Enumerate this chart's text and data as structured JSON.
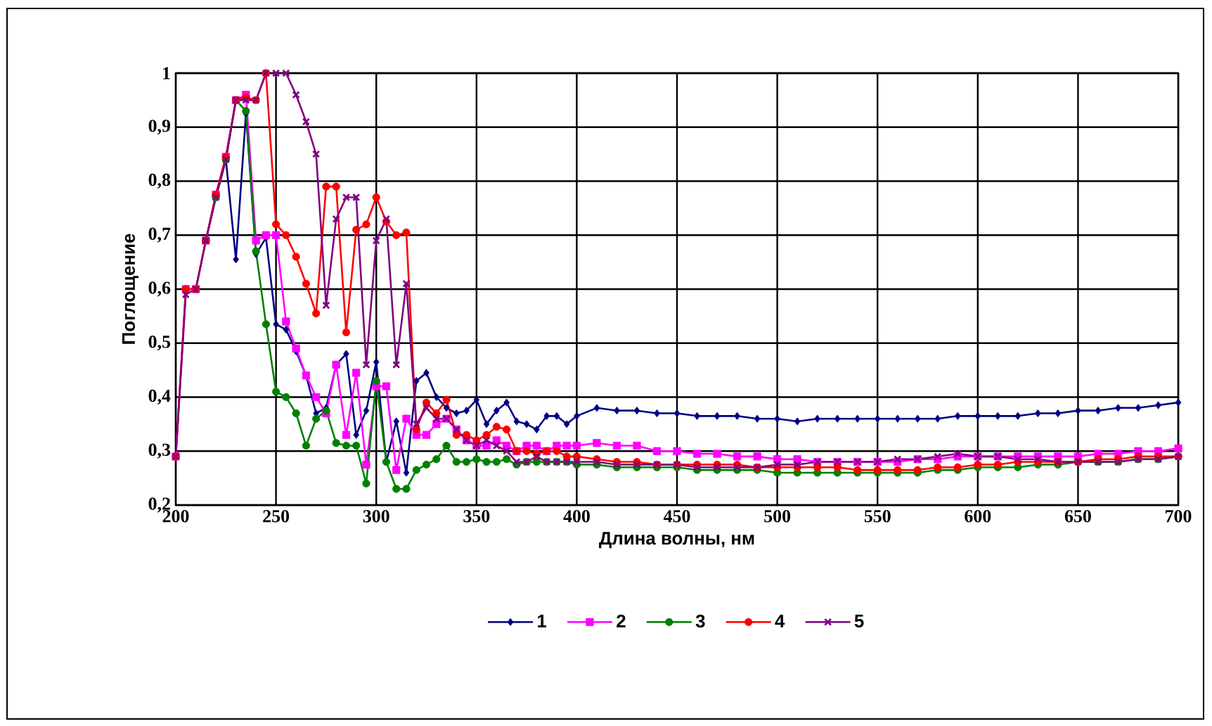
{
  "chart_data": {
    "type": "line",
    "xlabel": "Длина волны, нм",
    "ylabel": "Поглощение",
    "x": [
      200,
      205,
      210,
      215,
      220,
      225,
      230,
      235,
      240,
      245,
      250,
      255,
      260,
      265,
      270,
      275,
      280,
      285,
      290,
      295,
      300,
      305,
      310,
      315,
      320,
      325,
      330,
      335,
      340,
      345,
      350,
      355,
      360,
      365,
      370,
      375,
      380,
      385,
      390,
      395,
      400,
      410,
      420,
      430,
      440,
      450,
      460,
      470,
      480,
      490,
      500,
      510,
      520,
      530,
      540,
      550,
      560,
      570,
      580,
      590,
      600,
      610,
      620,
      630,
      640,
      650,
      660,
      670,
      680,
      690,
      700
    ],
    "series": [
      {
        "name": "1",
        "color": "#000080",
        "marker": "diamond",
        "values": [
          null,
          null,
          null,
          null,
          0.77,
          0.84,
          0.655,
          0.925,
          0.665,
          0.695,
          0.535,
          0.525,
          0.485,
          0.44,
          0.37,
          0.38,
          0.46,
          0.48,
          0.33,
          0.375,
          0.465,
          0.28,
          0.355,
          0.26,
          0.43,
          0.445,
          0.4,
          0.38,
          0.37,
          0.375,
          0.395,
          0.35,
          0.375,
          0.39,
          0.355,
          0.35,
          0.34,
          0.365,
          0.365,
          0.35,
          0.365,
          0.38,
          0.375,
          0.375,
          0.37,
          0.37,
          0.365,
          0.365,
          0.365,
          0.36,
          0.36,
          0.355,
          0.36,
          0.36,
          0.36,
          0.36,
          0.36,
          0.36,
          0.36,
          0.365,
          0.365,
          0.365,
          0.365,
          0.37,
          0.37,
          0.375,
          0.375,
          0.38,
          0.38,
          0.385,
          0.39
        ]
      },
      {
        "name": "2",
        "color": "#ff00ff",
        "marker": "square",
        "values": [
          0.29,
          0.6,
          0.6,
          0.69,
          0.775,
          0.845,
          0.95,
          0.96,
          0.69,
          0.7,
          0.7,
          0.54,
          0.49,
          0.44,
          0.4,
          0.37,
          0.46,
          0.33,
          0.445,
          0.275,
          0.42,
          0.42,
          0.265,
          0.36,
          0.33,
          0.33,
          0.35,
          0.36,
          0.34,
          0.32,
          0.31,
          0.31,
          0.32,
          0.31,
          0.3,
          0.31,
          0.31,
          0.3,
          0.31,
          0.31,
          0.31,
          0.315,
          0.31,
          0.31,
          0.3,
          0.3,
          0.295,
          0.295,
          0.29,
          0.29,
          0.285,
          0.285,
          0.28,
          0.28,
          0.28,
          0.28,
          0.28,
          0.285,
          0.285,
          0.29,
          0.29,
          0.29,
          0.29,
          0.29,
          0.29,
          0.29,
          0.295,
          0.295,
          0.3,
          0.3,
          0.305
        ]
      },
      {
        "name": "3",
        "color": "#008000",
        "marker": "circle",
        "values": [
          null,
          null,
          null,
          0.69,
          0.77,
          0.84,
          0.95,
          0.93,
          0.67,
          0.535,
          0.41,
          0.4,
          0.37,
          0.31,
          0.36,
          0.375,
          0.315,
          0.31,
          0.31,
          0.24,
          0.43,
          0.28,
          0.23,
          0.23,
          0.265,
          0.275,
          0.285,
          0.31,
          0.28,
          0.28,
          0.285,
          0.28,
          0.28,
          0.285,
          0.275,
          0.28,
          0.28,
          0.28,
          0.28,
          0.28,
          0.275,
          0.275,
          0.27,
          0.27,
          0.27,
          0.27,
          0.265,
          0.265,
          0.265,
          0.265,
          0.26,
          0.26,
          0.26,
          0.26,
          0.26,
          0.26,
          0.26,
          0.26,
          0.265,
          0.265,
          0.27,
          0.27,
          0.27,
          0.275,
          0.275,
          0.28,
          0.28,
          0.28,
          0.285,
          0.285,
          0.29
        ]
      },
      {
        "name": "4",
        "color": "#ff0000",
        "marker": "circle",
        "values": [
          0.29,
          0.6,
          0.6,
          0.69,
          0.775,
          0.845,
          0.95,
          0.955,
          0.95,
          1.0,
          0.72,
          0.7,
          0.66,
          0.61,
          0.555,
          0.79,
          0.79,
          0.52,
          0.71,
          0.72,
          0.77,
          0.725,
          0.7,
          0.705,
          0.34,
          0.39,
          0.37,
          0.395,
          0.33,
          0.33,
          0.32,
          0.33,
          0.345,
          0.34,
          0.3,
          0.3,
          0.295,
          0.3,
          0.3,
          0.29,
          0.29,
          0.285,
          0.28,
          0.28,
          0.275,
          0.275,
          0.275,
          0.275,
          0.275,
          0.27,
          0.27,
          0.27,
          0.27,
          0.27,
          0.265,
          0.265,
          0.265,
          0.265,
          0.27,
          0.27,
          0.275,
          0.275,
          0.28,
          0.28,
          0.28,
          0.28,
          0.285,
          0.285,
          0.29,
          0.29,
          0.29
        ]
      },
      {
        "name": "5",
        "color": "#800080",
        "marker": "cross",
        "values": [
          0.29,
          0.59,
          0.6,
          0.69,
          0.77,
          0.84,
          0.95,
          0.95,
          0.95,
          1.0,
          1.0,
          1.0,
          0.96,
          0.91,
          0.85,
          0.57,
          0.73,
          0.77,
          0.77,
          0.46,
          0.69,
          0.73,
          0.46,
          0.61,
          0.35,
          0.38,
          0.36,
          0.36,
          0.34,
          0.32,
          0.31,
          0.32,
          0.31,
          0.3,
          0.28,
          0.28,
          0.29,
          0.28,
          0.28,
          0.28,
          0.28,
          0.28,
          0.275,
          0.275,
          0.275,
          0.275,
          0.27,
          0.27,
          0.27,
          0.27,
          0.275,
          0.275,
          0.28,
          0.28,
          0.28,
          0.28,
          0.285,
          0.285,
          0.29,
          0.295,
          0.29,
          0.29,
          0.285,
          0.285,
          0.28,
          0.28,
          0.28,
          0.28,
          0.285,
          0.285,
          0.29
        ]
      }
    ],
    "xlim": [
      200,
      700
    ],
    "xticks": [
      200,
      250,
      300,
      350,
      400,
      450,
      500,
      550,
      600,
      650,
      700
    ],
    "ylim": [
      0.2,
      1
    ],
    "yticks": [
      {
        "value": 0.2,
        "label": "0,2"
      },
      {
        "value": 0.3,
        "label": "0,3"
      },
      {
        "value": 0.4,
        "label": "0,4"
      },
      {
        "value": 0.5,
        "label": "0,5"
      },
      {
        "value": 0.6,
        "label": "0,6"
      },
      {
        "value": 0.7,
        "label": "0,7"
      },
      {
        "value": 0.8,
        "label": "0,8"
      },
      {
        "value": 0.9,
        "label": "0,9"
      },
      1
    ],
    "grid": true,
    "legend": "bottom",
    "line_style": "solid"
  }
}
